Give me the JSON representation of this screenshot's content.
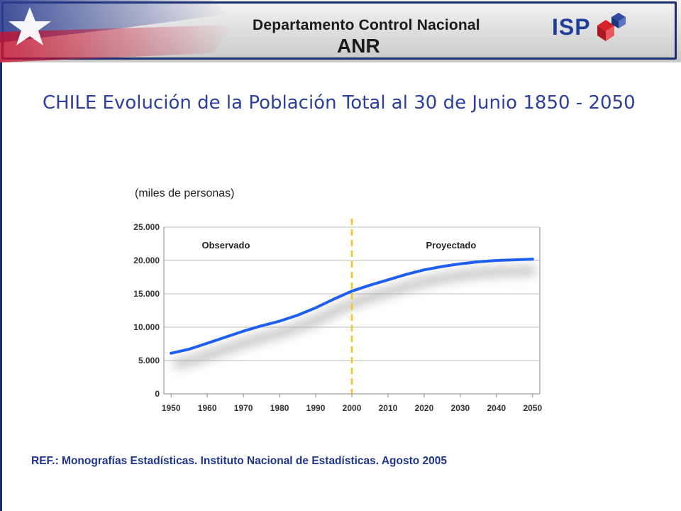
{
  "header": {
    "title": "Departamento Control Nacional",
    "subtitle": "ANR",
    "logo_text": "ISP"
  },
  "page_title": "CHILE Evolución de la Población Total al 30 de Junio 1850 - 2050",
  "reference": "REF.: Monografías Estadísticas. Instituto Nacional de Estadísticas. Agosto 2005",
  "colors": {
    "line": "#1f5ff0",
    "divider": "#f5c518",
    "title": "#2b3f9b",
    "border": "#1b2f6e"
  },
  "chart_data": {
    "type": "line",
    "ylabel": "(miles de personas)",
    "xlim": [
      1948,
      2052
    ],
    "ylim": [
      0,
      25000
    ],
    "y_ticks": [
      "0",
      "5.000",
      "10.000",
      "15.000",
      "20.000",
      "25.000"
    ],
    "y_tick_values": [
      0,
      5000,
      10000,
      15000,
      20000,
      25000
    ],
    "x_ticks": [
      "1950",
      "1960",
      "1970",
      "1980",
      "1990",
      "2000",
      "2010",
      "2020",
      "2030",
      "2040",
      "2050"
    ],
    "x_tick_values": [
      1950,
      1960,
      1970,
      1980,
      1990,
      2000,
      2010,
      2020,
      2030,
      2040,
      2050
    ],
    "grid": true,
    "divider_year": 2000,
    "annotations": [
      "Observado",
      "Proyectado"
    ],
    "series": [
      {
        "x": [
          1950,
          1955,
          1960,
          1965,
          1970,
          1975,
          1980,
          1985,
          1990,
          1995,
          2000,
          2005,
          2010,
          2015,
          2020,
          2025,
          2030,
          2035,
          2040,
          2045,
          2050
        ],
        "values": [
          6100,
          6700,
          7600,
          8500,
          9400,
          10200,
          10900,
          11800,
          12900,
          14200,
          15400,
          16300,
          17100,
          17900,
          18600,
          19100,
          19500,
          19800,
          20000,
          20100,
          20200
        ]
      }
    ]
  }
}
